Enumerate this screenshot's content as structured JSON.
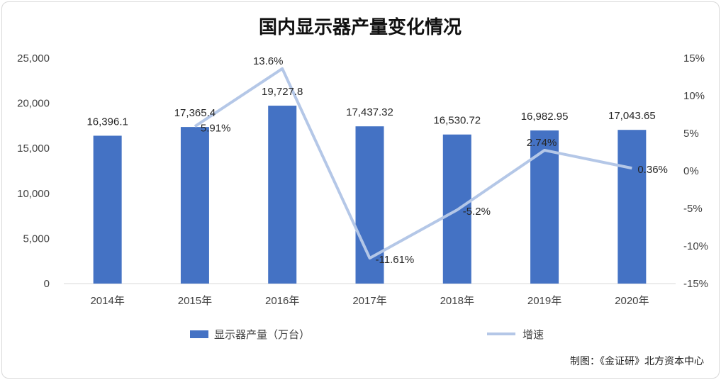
{
  "chart_data": {
    "type": "bar",
    "title": "国内显示器产量变化情况",
    "categories": [
      "2014年",
      "2015年",
      "2016年",
      "2017年",
      "2018年",
      "2019年",
      "2020年"
    ],
    "series": [
      {
        "name": "显示器产量（万台）",
        "type": "bar",
        "axis": "left",
        "color": "#4472C4",
        "values": [
          16396.1,
          17365.4,
          19727.8,
          17437.32,
          16530.72,
          16982.95,
          17043.65
        ],
        "labels": [
          "16,396.1",
          "17,365.4",
          "19,727.8",
          "17,437.32",
          "16,530.72",
          "16,982.95",
          "17,043.65"
        ]
      },
      {
        "name": "增速",
        "type": "line",
        "axis": "right",
        "color": "#B4C7E7",
        "values": [
          null,
          5.91,
          13.6,
          -11.61,
          -5.2,
          2.74,
          0.36
        ],
        "labels": [
          "",
          "5.91%",
          "13.6%",
          "-11.61%",
          "-5.2%",
          "2.74%",
          "0.36%"
        ]
      }
    ],
    "y_left": {
      "lim": [
        0,
        25000
      ],
      "ticks": [
        0,
        5000,
        10000,
        15000,
        20000,
        25000
      ],
      "tick_labels": [
        "0",
        "5,000",
        "10,000",
        "15,000",
        "20,000",
        "25,000"
      ]
    },
    "y_right": {
      "lim": [
        -15,
        15
      ],
      "ticks": [
        15,
        10,
        5,
        0,
        -5,
        -10,
        -15
      ],
      "tick_labels": [
        "15%",
        "10%",
        "5%",
        "0%",
        "-5%",
        "-10%",
        "-15%"
      ]
    },
    "grid": false,
    "legend_position": "bottom"
  },
  "source": "制图：《金证研》北方资本中心"
}
